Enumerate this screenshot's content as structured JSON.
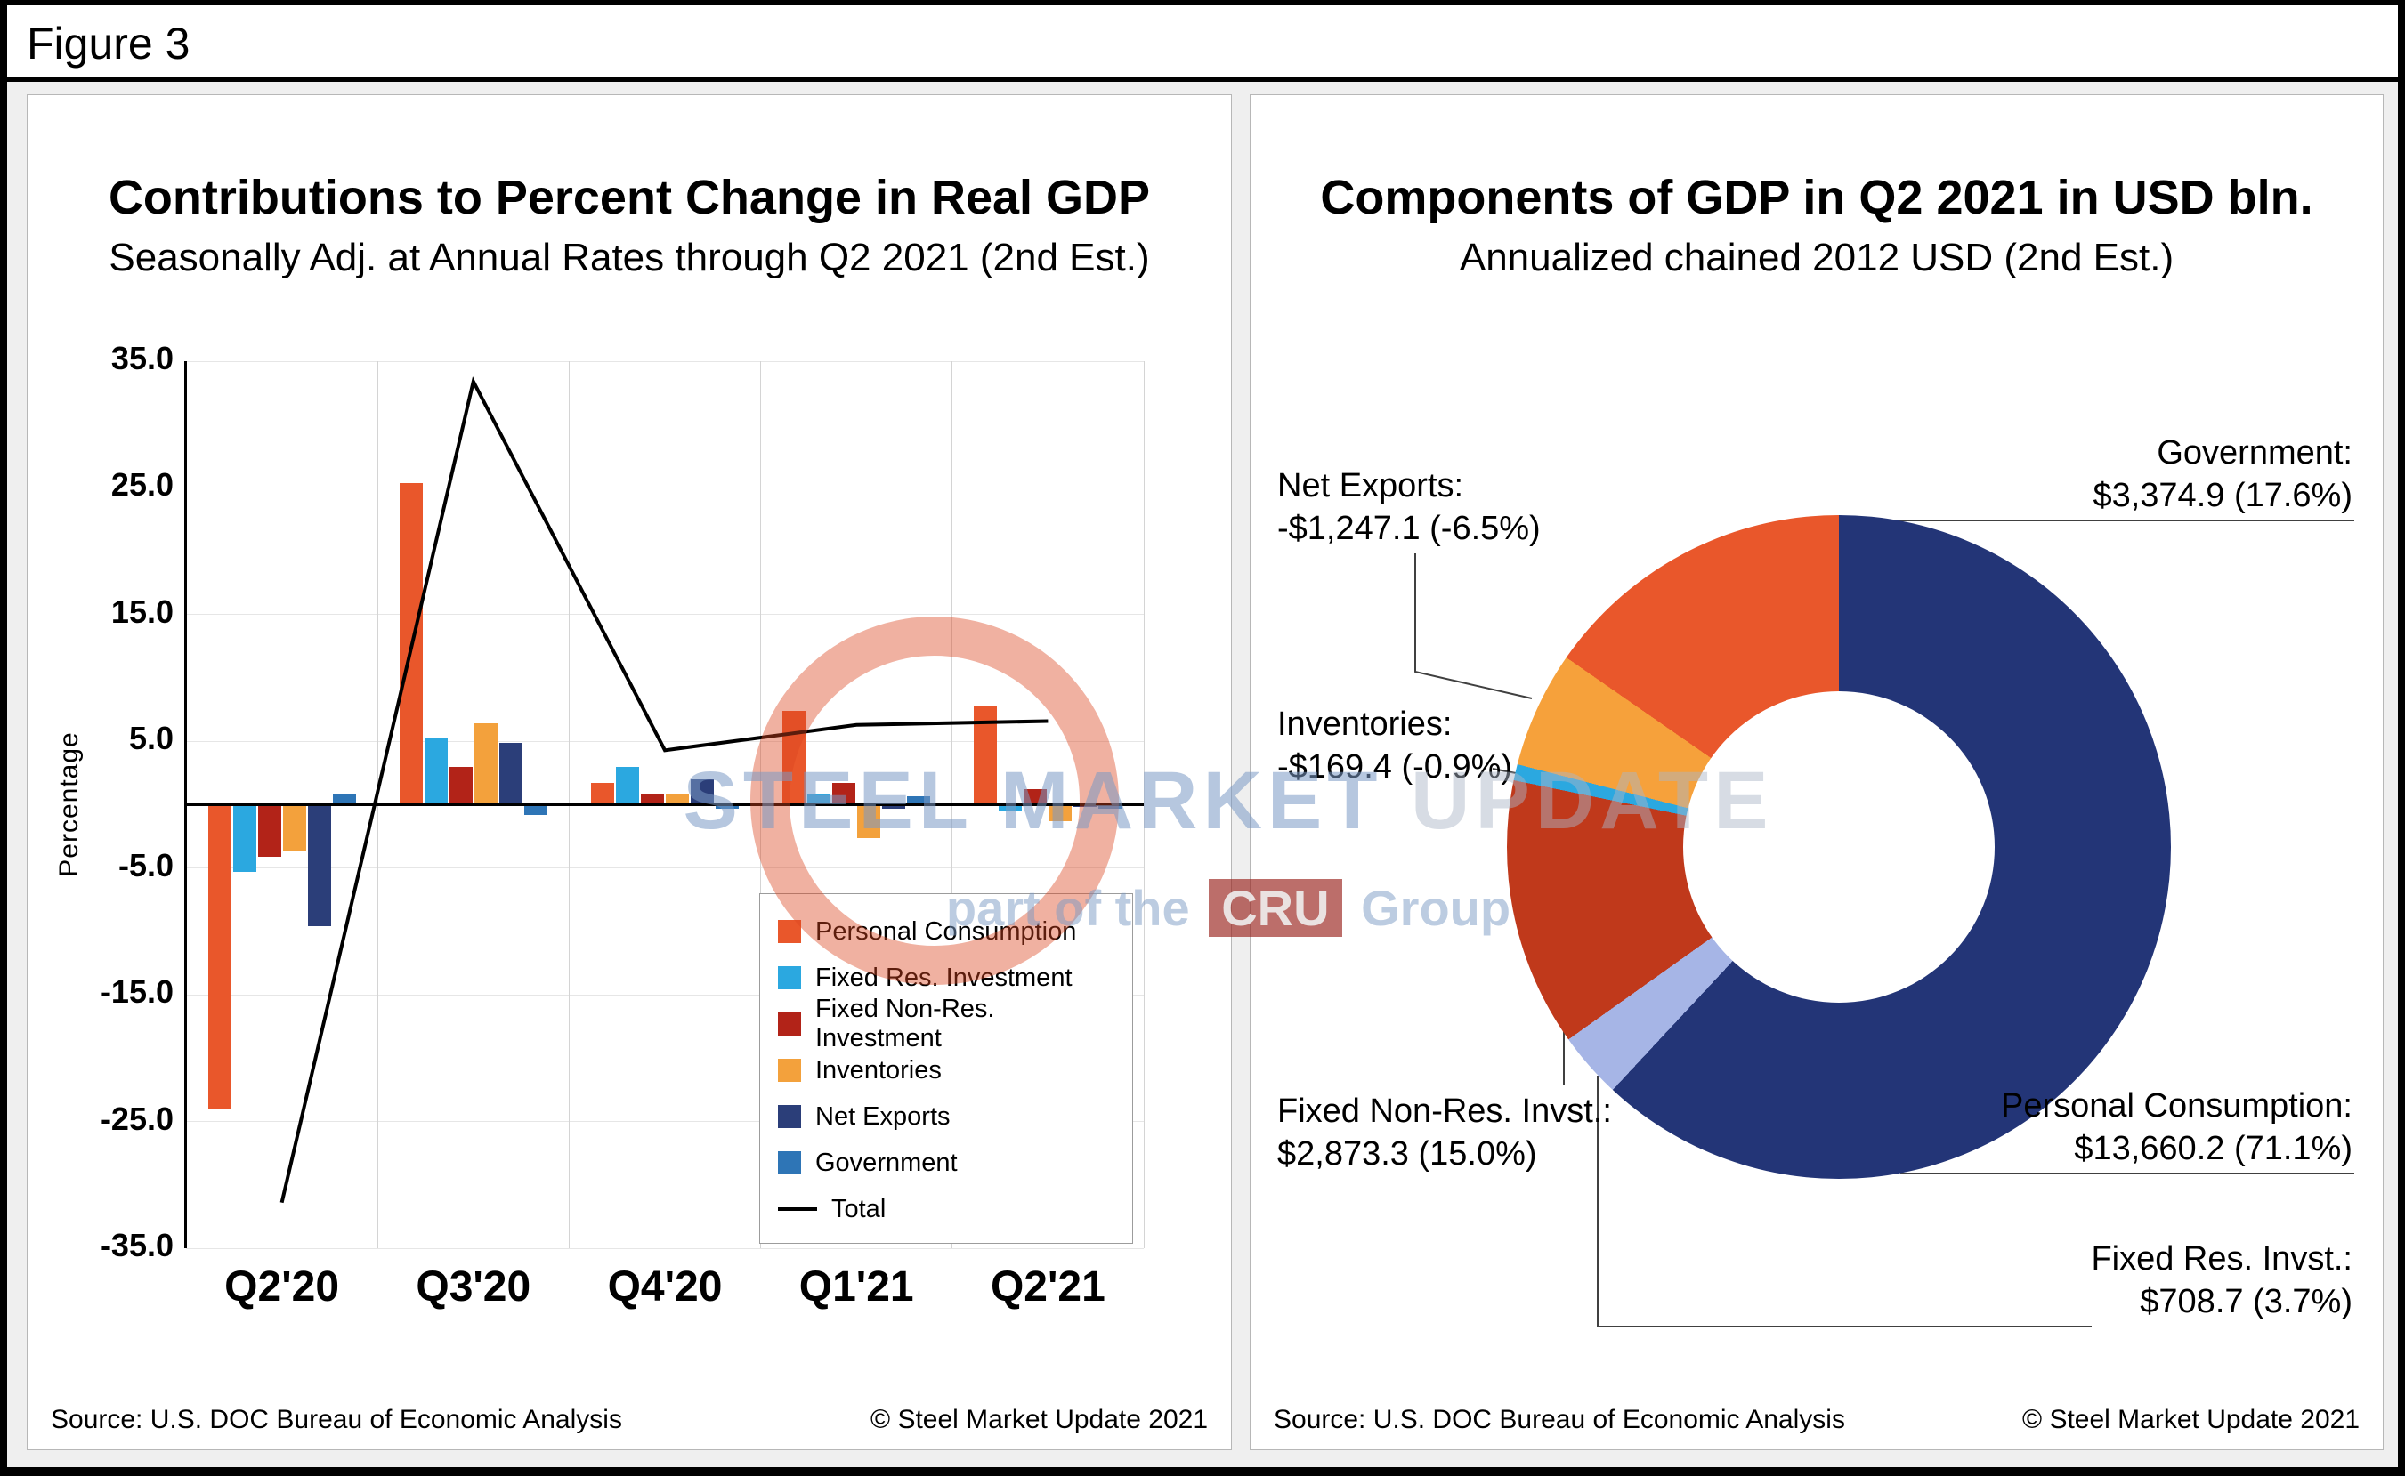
{
  "figure_label": "Figure 3",
  "watermark": {
    "brand": "STEEL MARKET",
    "brand2": "UPDATE",
    "tagline_prefix": "part of the",
    "cru": "CRU",
    "tagline_suffix": "Group"
  },
  "left_panel": {
    "title": "Contributions to Percent Change in Real GDP",
    "subtitle": "Seasonally Adj. at Annual Rates through Q2 2021 (2nd Est.)",
    "y_axis_label": "Percentage",
    "source": "Source: U.S. DOC Bureau of Economic Analysis",
    "copyright": "© Steel Market Update 2021"
  },
  "right_panel": {
    "title": "Components of GDP in Q2 2021 in USD bln.",
    "subtitle": "Annualized chained 2012 USD (2nd Est.)",
    "source": "Source: U.S. DOC Bureau of Economic Analysis",
    "copyright": "© Steel Market Update 2021",
    "callouts": {
      "government": {
        "line1": "Government:",
        "line2": "$3,374.9 (17.6%)"
      },
      "net_exports": {
        "line1": "Net Exports:",
        "line2": "-$1,247.1 (-6.5%)"
      },
      "inventories": {
        "line1": "Inventories:",
        "line2": "-$169.4 (-0.9%)"
      },
      "fixed_nonres": {
        "line1": "Fixed Non-Res. Invst.:",
        "line2": "$2,873.3 (15.0%)"
      },
      "personal_consumption": {
        "line1": "Personal Consumption:",
        "line2": "$13,660.2 (71.1%)"
      },
      "fixed_res": {
        "line1": "Fixed Res. Invst.:",
        "line2": "$708.7 (3.7%)"
      }
    }
  },
  "chart_data": [
    {
      "type": "bar",
      "title": "Contributions to Percent Change in Real GDP",
      "subtitle": "Seasonally Adj. at Annual Rates through Q2 2021 (2nd Est.)",
      "ylabel": "Percentage",
      "ylim": [
        -35,
        35
      ],
      "yticks": [
        "35.0",
        "25.0",
        "15.0",
        "5.0",
        "-5.0",
        "-15.0",
        "-25.0",
        "-35.0"
      ],
      "grid": "light horizontal lines every 10, vertical category separators",
      "legend_position": "inside lower right, boxed",
      "categories": [
        "Q2'20",
        "Q3'20",
        "Q4'20",
        "Q1'21",
        "Q2'21"
      ],
      "series": [
        {
          "name": "Personal Consumption",
          "color": "#E9572B",
          "values": [
            -24.0,
            25.4,
            1.7,
            7.4,
            7.8
          ]
        },
        {
          "name": "Fixed Res. Investment",
          "color": "#2BA8E0",
          "values": [
            -5.3,
            5.2,
            3.0,
            0.8,
            -0.5
          ]
        },
        {
          "name": "Fixed Non-Res. Investment",
          "color": "#B22318",
          "values": [
            -4.1,
            3.0,
            0.9,
            1.7,
            1.2
          ]
        },
        {
          "name": "Inventories",
          "color": "#F3A13C",
          "values": [
            -3.6,
            6.4,
            0.9,
            -2.6,
            -1.3
          ]
        },
        {
          "name": "Net Exports",
          "color": "#2B3E79",
          "values": [
            -9.6,
            4.9,
            2.0,
            -0.3,
            -0.2
          ]
        },
        {
          "name": "Government",
          "color": "#2E75B6",
          "values": [
            0.9,
            -0.8,
            -0.3,
            0.7,
            -0.3
          ]
        }
      ],
      "line_series": {
        "name": "Total",
        "color": "#000000",
        "values": [
          -31.4,
          33.4,
          4.3,
          6.3,
          6.6
        ]
      }
    },
    {
      "type": "pie",
      "subtype": "donut",
      "title": "Components of GDP in Q2 2021 in USD bln.",
      "subtitle": "Annualized chained 2012 USD (2nd Est.)",
      "units": "USD bln, annualized chained 2012 USD",
      "angle_rule": "slice angles proportional to absolute percentage shares, clockwise from top",
      "slices": [
        {
          "label": "Personal Consumption",
          "value": 13660.2,
          "pct": 71.1,
          "color": "#233577"
        },
        {
          "label": "Fixed Res. Invst.",
          "value": 708.7,
          "pct": 3.7,
          "color": "#A6B5E6"
        },
        {
          "label": "Fixed Non-Res. Invst.",
          "value": 2873.3,
          "pct": 15.0,
          "color": "#C0391B"
        },
        {
          "label": "Inventories",
          "value": -169.4,
          "pct": -0.9,
          "color": "#2BA8E0"
        },
        {
          "label": "Net Exports",
          "value": -1247.1,
          "pct": -6.5,
          "color": "#F6A13B"
        },
        {
          "label": "Government",
          "value": 3374.9,
          "pct": 17.6,
          "color": "#E9572B"
        }
      ]
    }
  ]
}
